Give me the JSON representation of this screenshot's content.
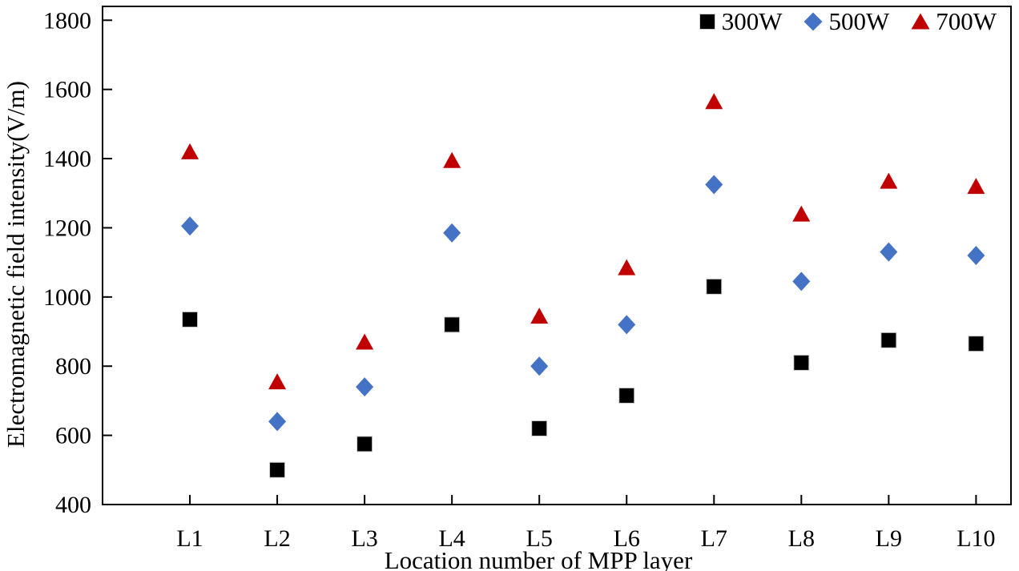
{
  "chart_data": {
    "type": "scatter",
    "title": "",
    "xlabel": "Location number of MPP layer",
    "ylabel": "Electromagnetic field intensity(V/m)",
    "categories": [
      "L1",
      "L2",
      "L3",
      "L4",
      "L5",
      "L6",
      "L7",
      "L8",
      "L9",
      "L10"
    ],
    "series": [
      {
        "name": "300W",
        "marker": "square",
        "color": "#000000",
        "values": [
          935,
          500,
          575,
          920,
          620,
          715,
          1030,
          810,
          875,
          865
        ]
      },
      {
        "name": "500W",
        "marker": "diamond",
        "color": "#4472C4",
        "values": [
          1205,
          640,
          740,
          1185,
          800,
          920,
          1325,
          1045,
          1130,
          1120
        ]
      },
      {
        "name": "700W",
        "marker": "triangle",
        "color": "#C00000",
        "values": [
          1420,
          755,
          870,
          1395,
          945,
          1085,
          1565,
          1240,
          1335,
          1320
        ]
      }
    ],
    "ylim": [
      400,
      1800
    ],
    "ytick_step": 200,
    "ytick_labels": [
      "400",
      "600",
      "800",
      "1000",
      "1200",
      "1400",
      "1600",
      "1800"
    ],
    "legend_position": "top-right",
    "grid": false,
    "axis_color": "#000000"
  }
}
